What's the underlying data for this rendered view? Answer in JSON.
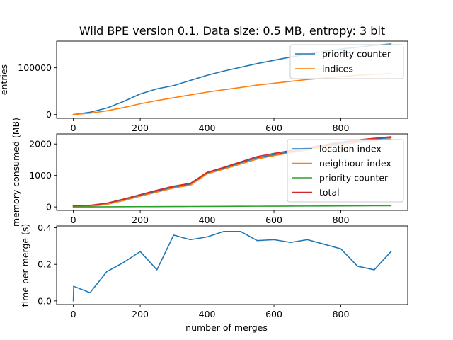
{
  "figure": {
    "title": "Wild BPE version 0.1, Data size: 0.5 MB, entropy: 3 bit"
  },
  "colors": {
    "blue": "#1f77b4",
    "orange": "#ff7f0e",
    "green": "#2ca02c",
    "red": "#d62728"
  },
  "chart_data": [
    {
      "type": "line",
      "title": "Wild BPE version 0.1, Data size: 0.5 MB, entropy: 3 bit",
      "xlabel": "",
      "ylabel": "entries",
      "xlim": [
        -50,
        1000
      ],
      "ylim": [
        -8000,
        157000
      ],
      "xticks": [
        0,
        200,
        400,
        600,
        800
      ],
      "yticks": [
        0,
        100000
      ],
      "legend_position": "top-right",
      "grid": false,
      "series": [
        {
          "name": "priority counter",
          "color": "#1f77b4",
          "x": [
            0,
            50,
            100,
            150,
            200,
            250,
            300,
            350,
            400,
            450,
            500,
            550,
            600,
            650,
            700,
            750,
            800,
            850,
            900,
            950
          ],
          "y": [
            0,
            5000,
            14000,
            28000,
            44000,
            55000,
            62000,
            73000,
            84000,
            93000,
            101000,
            109000,
            116000,
            123000,
            129000,
            135000,
            140000,
            144000,
            148000,
            151000
          ]
        },
        {
          "name": "indices",
          "color": "#ff7f0e",
          "x": [
            0,
            50,
            100,
            150,
            200,
            250,
            300,
            350,
            400,
            450,
            500,
            550,
            600,
            650,
            700,
            750,
            800,
            850,
            900,
            950
          ],
          "y": [
            0,
            3000,
            8000,
            15000,
            23000,
            30000,
            36000,
            42000,
            48000,
            53000,
            58000,
            63000,
            67000,
            71000,
            75000,
            78000,
            81000,
            84000,
            86000,
            88000
          ]
        }
      ]
    },
    {
      "type": "line",
      "xlabel": "",
      "ylabel": "memory consumed (MB)",
      "xlim": [
        -50,
        1000
      ],
      "ylim": [
        -110,
        2320
      ],
      "xticks": [
        0,
        200,
        400,
        600,
        800
      ],
      "yticks": [
        0,
        1000,
        2000
      ],
      "legend_position": "top-right",
      "grid": false,
      "series": [
        {
          "name": "location index",
          "color": "#1f77b4",
          "x": [
            0,
            50,
            100,
            150,
            200,
            250,
            300,
            350,
            400,
            450,
            500,
            550,
            600,
            650,
            700,
            750,
            800,
            850,
            900,
            950
          ],
          "y": [
            25,
            32,
            100,
            220,
            360,
            500,
            630,
            720,
            1080,
            1230,
            1400,
            1560,
            1660,
            1750,
            1850,
            1940,
            2020,
            2090,
            2150,
            2200
          ]
        },
        {
          "name": "neighbour index",
          "color": "#ff7f0e",
          "x": [
            0,
            50,
            100,
            150,
            200,
            250,
            300,
            350,
            400,
            450,
            500,
            550,
            600,
            650,
            700,
            750,
            800,
            850,
            900,
            950
          ],
          "y": [
            10,
            18,
            80,
            200,
            340,
            470,
            600,
            690,
            1050,
            1200,
            1360,
            1520,
            1630,
            1720,
            1810,
            1900,
            1980,
            2050,
            2110,
            2160
          ]
        },
        {
          "name": "priority counter",
          "color": "#2ca02c",
          "x": [
            0,
            50,
            100,
            150,
            200,
            250,
            300,
            350,
            400,
            450,
            500,
            550,
            600,
            650,
            700,
            750,
            800,
            850,
            900,
            950
          ],
          "y": [
            0,
            2,
            4,
            6,
            8,
            10,
            12,
            14,
            16,
            18,
            20,
            22,
            24,
            26,
            28,
            30,
            32,
            34,
            36,
            38
          ]
        },
        {
          "name": "total",
          "color": "#d62728",
          "x": [
            0,
            50,
            100,
            150,
            200,
            250,
            300,
            350,
            400,
            450,
            500,
            550,
            600,
            650,
            700,
            750,
            800,
            850,
            900,
            950
          ],
          "y": [
            35,
            52,
            120,
            250,
            390,
            530,
            660,
            750,
            1100,
            1260,
            1430,
            1600,
            1700,
            1790,
            1880,
            1970,
            2060,
            2130,
            2180,
            2230
          ]
        }
      ]
    },
    {
      "type": "line",
      "xlabel": "number of merges",
      "ylabel": "time per merge (s)",
      "xlim": [
        -50,
        1000
      ],
      "ylim": [
        -0.02,
        0.41
      ],
      "xticks": [
        0,
        200,
        400,
        600,
        800
      ],
      "yticks": [
        0.0,
        0.2,
        0.4
      ],
      "ytick_labels": [
        "0.0",
        "0.2",
        "0.4"
      ],
      "legend_position": "none",
      "grid": false,
      "series": [
        {
          "color": "#1f77b4",
          "x": [
            0,
            1,
            50,
            100,
            150,
            200,
            250,
            300,
            350,
            400,
            450,
            500,
            550,
            600,
            650,
            700,
            750,
            800,
            850,
            900,
            950
          ],
          "y": [
            0.0,
            0.08,
            0.045,
            0.16,
            0.21,
            0.27,
            0.17,
            0.36,
            0.335,
            0.35,
            0.38,
            0.38,
            0.33,
            0.335,
            0.32,
            0.335,
            0.31,
            0.285,
            0.19,
            0.17,
            0.27
          ]
        }
      ]
    }
  ]
}
